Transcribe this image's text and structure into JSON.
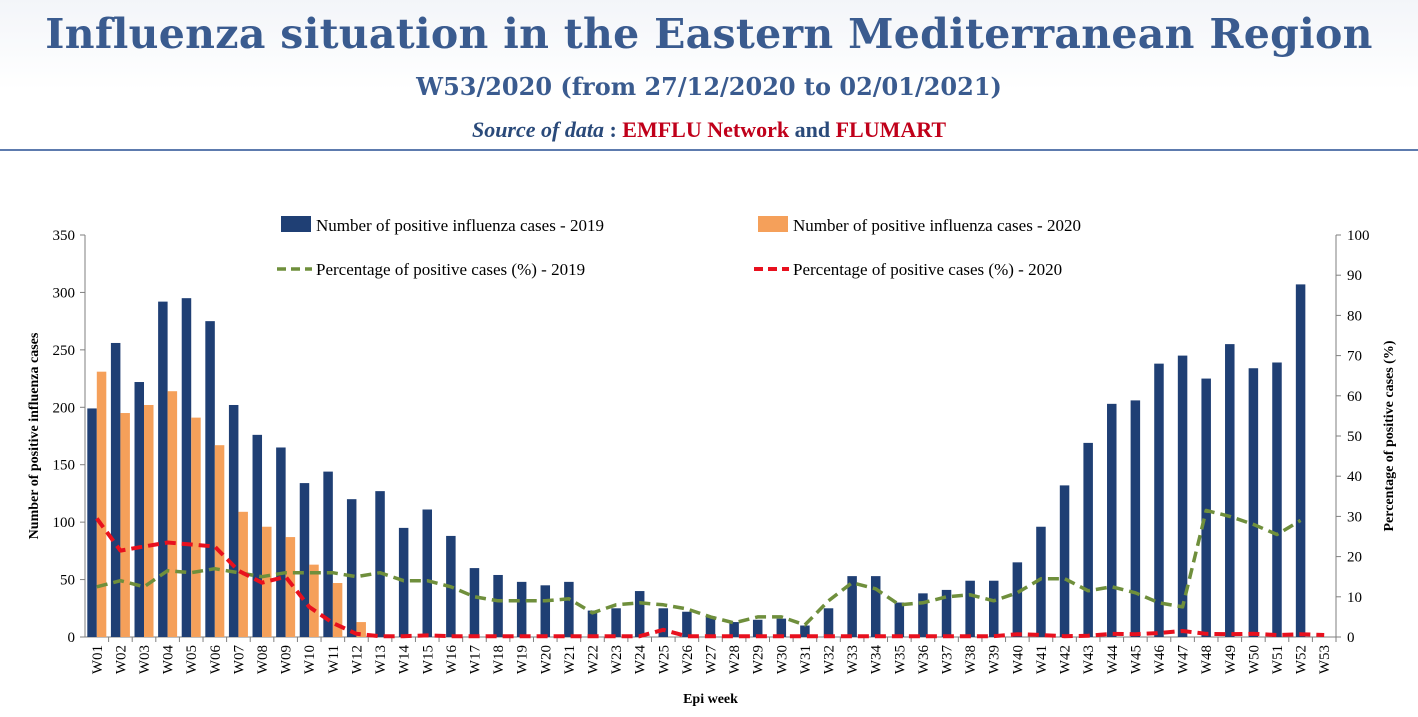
{
  "header": {
    "title": "Influenza situation in the Eastern Mediterranean Region",
    "subtitle": "W53/2020 (from 27/12/2020 to 02/01/2021)",
    "source_label": "Source of data",
    "source_sep": " : ",
    "source_net1": "EMFLU Network",
    "source_and": " and ",
    "source_net2": "FLUMART"
  },
  "colors": {
    "bar2019": "#1f3f74",
    "bar2020": "#f5a05a",
    "pct2019": "#6f8f3c",
    "pct2020": "#e8101e",
    "title": "#3a5b8f"
  },
  "chart_data": {
    "type": "bar",
    "xlabel": "Epi week",
    "ylabel": "Number of positive influenza cases",
    "y2label": "Percentage of positive cases (%)",
    "ylim": [
      0,
      350
    ],
    "y2lim": [
      0,
      100
    ],
    "yticks": [
      "0",
      "50",
      "100",
      "150",
      "200",
      "250",
      "300",
      "350"
    ],
    "y2ticks": [
      "0",
      "10",
      "20",
      "30",
      "40",
      "50",
      "60",
      "70",
      "80",
      "90",
      "100"
    ],
    "legend_position": "top",
    "categories": [
      "W01",
      "W02",
      "W03",
      "W04",
      "W05",
      "W06",
      "W07",
      "W08",
      "W09",
      "W10",
      "W11",
      "W12",
      "W13",
      "W14",
      "W15",
      "W16",
      "W17",
      "W18",
      "W19",
      "W20",
      "W21",
      "W22",
      "W23",
      "W24",
      "W25",
      "W26",
      "W27",
      "W28",
      "W29",
      "W30",
      "W31",
      "W32",
      "W33",
      "W34",
      "W35",
      "W36",
      "W37",
      "W38",
      "W39",
      "W40",
      "W41",
      "W42",
      "W43",
      "W44",
      "W45",
      "W46",
      "W47",
      "W48",
      "W49",
      "W50",
      "W51",
      "W52",
      "W53"
    ],
    "series": [
      {
        "name": "Number of positive influenza cases  - 2019",
        "kind": "bar",
        "axis": "left",
        "values": [
          199,
          256,
          222,
          292,
          295,
          275,
          202,
          176,
          165,
          134,
          144,
          120,
          127,
          95,
          111,
          88,
          60,
          54,
          48,
          45,
          48,
          23,
          25,
          40,
          25,
          22,
          18,
          13,
          15,
          16,
          10,
          25,
          53,
          53,
          30,
          38,
          41,
          49,
          49,
          65,
          96,
          132,
          169,
          203,
          206,
          238,
          245,
          225,
          255,
          234,
          239,
          307,
          null
        ]
      },
      {
        "name": "Number of positive influenza cases  - 2020",
        "kind": "bar",
        "axis": "left",
        "values": [
          231,
          195,
          202,
          214,
          191,
          167,
          109,
          96,
          87,
          63,
          47,
          13,
          null,
          null,
          null,
          null,
          null,
          null,
          null,
          null,
          null,
          null,
          null,
          null,
          null,
          null,
          null,
          null,
          null,
          null,
          null,
          null,
          null,
          null,
          null,
          null,
          null,
          null,
          null,
          null,
          null,
          null,
          null,
          null,
          null,
          null,
          null,
          null,
          null,
          null,
          null,
          null,
          null
        ]
      },
      {
        "name": "Percentage of positive cases (%)  - 2019",
        "kind": "line",
        "axis": "right",
        "values": [
          12.5,
          14,
          12.5,
          16.5,
          16,
          17,
          16,
          15,
          16,
          16,
          16,
          15,
          16,
          14,
          14,
          12.5,
          10,
          9,
          9,
          9,
          9.5,
          6,
          8,
          8.5,
          8,
          7,
          5,
          3.5,
          5,
          5,
          3,
          9,
          13.5,
          12,
          8,
          8.5,
          10,
          10.5,
          9,
          11,
          14.5,
          14.5,
          11.5,
          12.5,
          11,
          8.5,
          7.5,
          31.5,
          30,
          28,
          25.5,
          29,
          null
        ]
      },
      {
        "name": "Percentage of positive cases (%)  - 2020",
        "kind": "line",
        "axis": "right",
        "values": [
          29.5,
          21.5,
          22.5,
          23.5,
          23,
          22.5,
          16.5,
          13.5,
          15,
          7.5,
          3.5,
          0.8,
          0.2,
          0.2,
          0.4,
          0.2,
          0.2,
          0.2,
          0.2,
          0.2,
          0.2,
          0.2,
          0.2,
          0.2,
          1.8,
          0.2,
          0.2,
          0.2,
          0.2,
          0.2,
          0.2,
          0.2,
          0.2,
          0.2,
          0.2,
          0.2,
          0.2,
          0.2,
          0.2,
          0.7,
          0.5,
          0.2,
          0.3,
          0.8,
          0.7,
          1,
          1.5,
          0.8,
          0.7,
          0.8,
          0.5,
          0.7,
          0.5
        ]
      }
    ]
  }
}
